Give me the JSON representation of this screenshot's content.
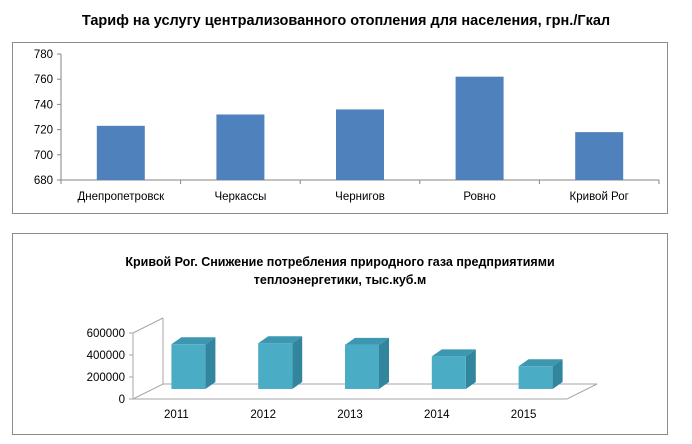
{
  "chart_data": [
    {
      "type": "bar",
      "title": "Тариф на услугу централизованного отопления для населения, грн./Гкал",
      "categories": [
        "Днепропетровск",
        "Черкассы",
        "Чернигов",
        "Ровно",
        "Кривой Рог"
      ],
      "values": [
        723,
        732,
        736,
        762,
        718
      ],
      "ylim": [
        680,
        780
      ],
      "yticks": [
        "780",
        "760",
        "740",
        "720",
        "700",
        "680"
      ],
      "ytick_values": [
        780,
        760,
        740,
        720,
        700,
        680
      ],
      "grid": false,
      "color": "#4f81bd"
    },
    {
      "type": "bar",
      "style": "3d-column",
      "title_lines": [
        "Кривой Рог. Снижение потребления природного газа предприятиями",
        "теплоэнергетики, тыс.куб.м"
      ],
      "categories": [
        "2011",
        "2012",
        "2013",
        "2014",
        "2015"
      ],
      "values": [
        470000,
        480000,
        465000,
        360000,
        270000
      ],
      "ylim": [
        0,
        600000
      ],
      "yticks": [
        "600000",
        "400000",
        "200000",
        "0"
      ],
      "ytick_values": [
        600000,
        400000,
        200000,
        0
      ],
      "grid": false,
      "color": "#4bacc6"
    }
  ]
}
